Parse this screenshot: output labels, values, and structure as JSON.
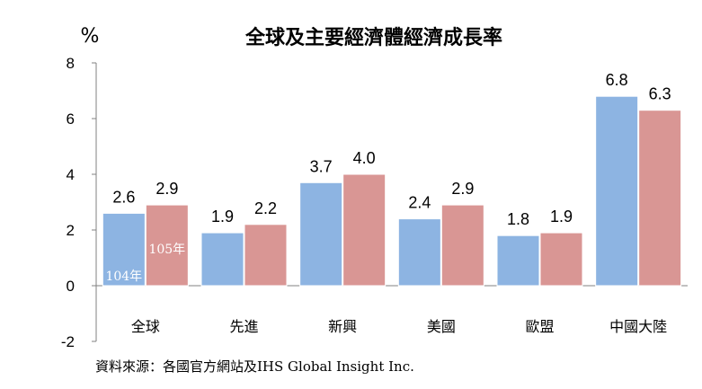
{
  "chart_data": {
    "type": "bar",
    "title": "全球及主要經濟體經濟成長率",
    "ylabel": "%",
    "ylim": [
      -2,
      8
    ],
    "yticks": [
      -2,
      0,
      2,
      4,
      6,
      8
    ],
    "categories": [
      "全球",
      "先進",
      "新興",
      "美國",
      "歐盟",
      "中國大陸"
    ],
    "series": [
      {
        "name": "104年",
        "values": [
          2.6,
          1.9,
          3.7,
          2.4,
          1.8,
          6.8
        ],
        "color": "#8DB4E2"
      },
      {
        "name": "105年",
        "values": [
          2.9,
          2.2,
          4.0,
          2.9,
          1.9,
          6.3
        ],
        "color": "#D99694"
      }
    ],
    "grid": false,
    "legend": "inside-first-bars",
    "source": "資料來源：各國官方網站及IHS Global Insight Inc."
  }
}
